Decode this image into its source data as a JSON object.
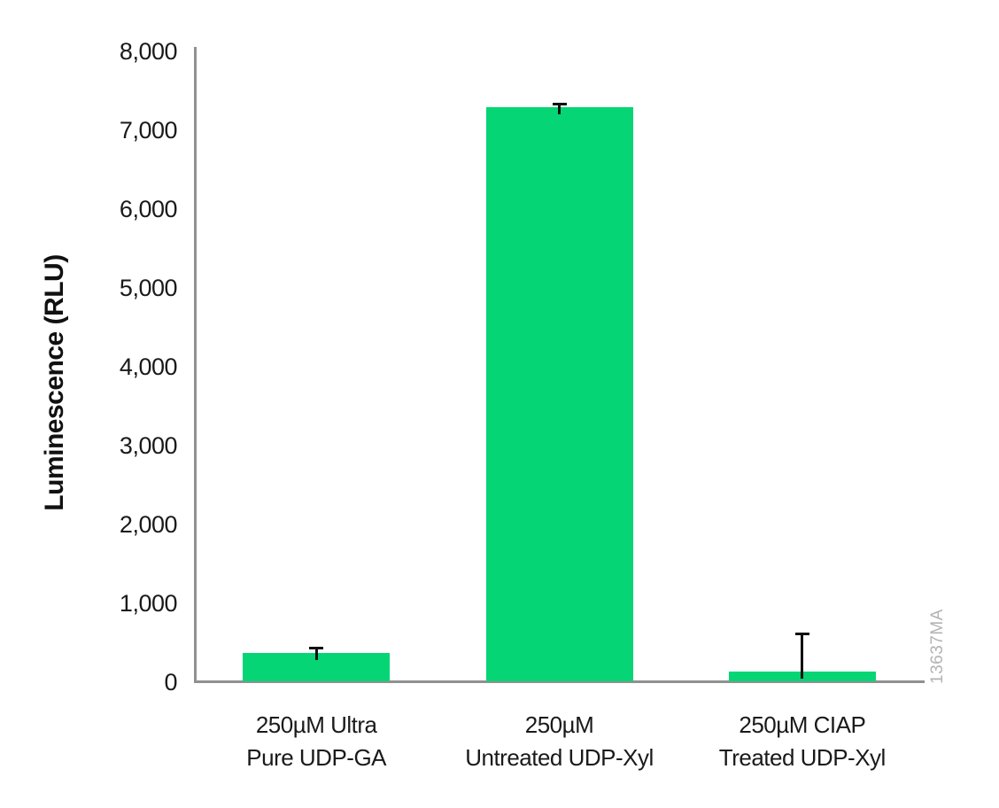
{
  "chart_data": {
    "type": "bar",
    "title": "",
    "xlabel": "",
    "ylabel": "Luminescence (RLU)",
    "ylim": [
      0,
      8000
    ],
    "ytick_interval": 1000,
    "ytick_labels": [
      "0",
      "1,000",
      "2,000",
      "3,000",
      "4,000",
      "5,000",
      "6,000",
      "7,000",
      "8,000"
    ],
    "categories": [
      "250µM Ultra\nPure UDP-GA",
      "250µM\nUntreated UDP-Xyl",
      "250µM CIAP\nTreated UDP-Xyl"
    ],
    "values": [
      370,
      7290,
      140
    ],
    "error_upper": [
      440,
      7340,
      620
    ],
    "grid": false,
    "legend": "none"
  },
  "watermark": "13637MA",
  "colors": {
    "bar": "#05d574",
    "axis": "#909090",
    "error_bar": "#111111",
    "text": "#1a1a1a",
    "watermark": "#b3b3b3"
  }
}
